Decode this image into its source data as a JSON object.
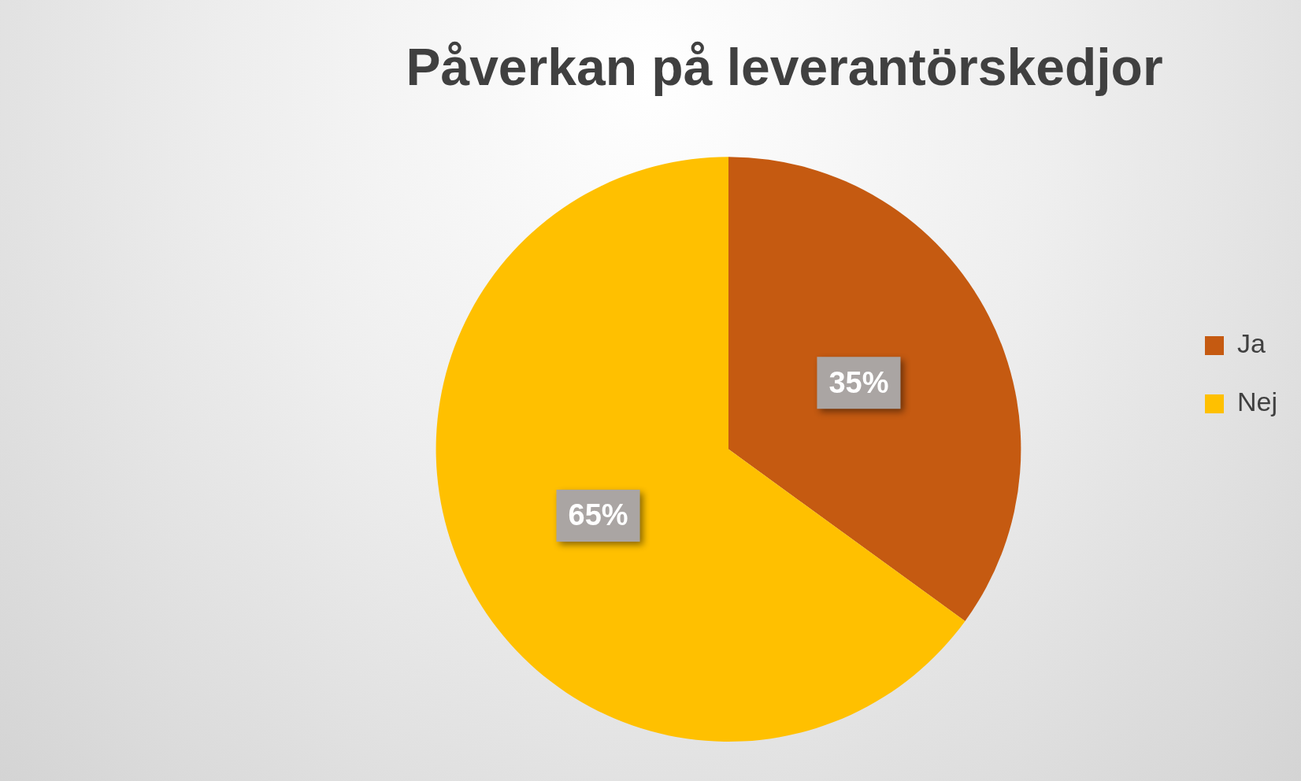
{
  "chart_data": {
    "type": "pie",
    "title": "Påverkan på leverantörskedjor",
    "categories": [
      "Ja",
      "Nej"
    ],
    "values": [
      35,
      65
    ],
    "colors": [
      "#c55a11",
      "#ffc000"
    ],
    "value_labels": [
      "35%",
      "65%"
    ],
    "legend": "right"
  }
}
